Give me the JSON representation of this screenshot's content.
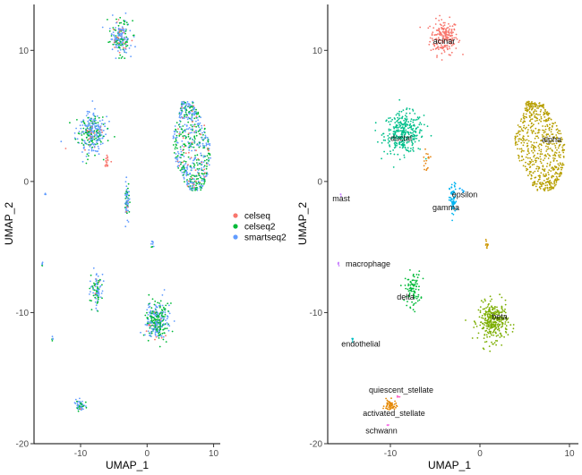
{
  "chart_data": [
    {
      "type": "scatter",
      "panel": "left",
      "title": "",
      "xlabel": "UMAP_1",
      "ylabel": "UMAP_2",
      "xlim": [
        -17,
        11
      ],
      "ylim": [
        -20,
        13.5
      ],
      "xticks": [
        -10,
        0,
        10
      ],
      "yticks": [
        -20,
        -10,
        0,
        10
      ],
      "xtick_labels": [
        "-10",
        "0",
        "10"
      ],
      "ytick_labels": [
        "-20",
        "-10",
        "0",
        "10"
      ],
      "grid": false,
      "legend": {
        "placement": "right",
        "entries": [
          {
            "name": "celseq",
            "color": "#F8766D"
          },
          {
            "name": "celseq2",
            "color": "#00BA38"
          },
          {
            "name": "smartseq2",
            "color": "#619CFF"
          }
        ]
      },
      "clusters": [
        {
          "center": [
            -4.0,
            11.0
          ],
          "spread": [
            1.4,
            1.2
          ],
          "points": 200,
          "mix": [
            0.1,
            0.35,
            0.55
          ],
          "shape": "blob"
        },
        {
          "center": [
            -8.5,
            3.7
          ],
          "spread": [
            2.0,
            1.4
          ],
          "points": 320,
          "mix": [
            0.08,
            0.32,
            0.6
          ],
          "shape": "blob"
        },
        {
          "center": [
            -6.0,
            1.6
          ],
          "spread": [
            0.4,
            0.6
          ],
          "points": 16,
          "mix": [
            1.0,
            0.0,
            0.0
          ],
          "shape": "blob"
        },
        {
          "center": [
            6.7,
            2.7
          ],
          "spread": [
            2.8,
            3.4
          ],
          "points": 600,
          "mix": [
            0.08,
            0.42,
            0.5
          ],
          "shape": "teardrop"
        },
        {
          "center": [
            -3.0,
            -1.5
          ],
          "spread": [
            0.35,
            1.2
          ],
          "points": 70,
          "mix": [
            0.05,
            0.3,
            0.65
          ],
          "shape": "blob"
        },
        {
          "center": [
            -7.5,
            -8.2
          ],
          "spread": [
            0.8,
            1.2
          ],
          "points": 90,
          "mix": [
            0.05,
            0.5,
            0.45
          ],
          "shape": "blob"
        },
        {
          "center": [
            1.5,
            -10.7
          ],
          "spread": [
            1.5,
            1.3
          ],
          "points": 320,
          "mix": [
            0.05,
            0.48,
            0.47
          ],
          "shape": "blob"
        },
        {
          "center": [
            -10.0,
            -17.1
          ],
          "spread": [
            0.6,
            0.4
          ],
          "points": 55,
          "mix": [
            0.05,
            0.35,
            0.6
          ],
          "shape": "blob"
        },
        {
          "center": [
            0.8,
            -4.8
          ],
          "spread": [
            0.2,
            0.4
          ],
          "points": 10,
          "mix": [
            0.0,
            0.3,
            0.7
          ],
          "shape": "blob"
        },
        {
          "center": [
            -15.8,
            -6.3
          ],
          "spread": [
            0.1,
            0.2
          ],
          "points": 5,
          "mix": [
            0.0,
            0.4,
            0.6
          ],
          "shape": "blob"
        },
        {
          "center": [
            -14.2,
            -12.0
          ],
          "spread": [
            0.1,
            0.2
          ],
          "points": 5,
          "mix": [
            0.0,
            0.4,
            0.6
          ],
          "shape": "blob"
        },
        {
          "center": [
            -15.3,
            -1.0
          ],
          "spread": [
            0.1,
            0.15
          ],
          "points": 3,
          "mix": [
            0.0,
            0.4,
            0.6
          ],
          "shape": "blob"
        }
      ]
    },
    {
      "type": "scatter",
      "panel": "right",
      "title": "",
      "xlabel": "UMAP_1",
      "ylabel": "UMAP_2",
      "xlim": [
        -17,
        11
      ],
      "ylim": [
        -20,
        13.5
      ],
      "xticks": [
        -10,
        0,
        10
      ],
      "yticks": [
        -20,
        -10,
        0,
        10
      ],
      "xtick_labels": [
        "-10",
        "0",
        "10"
      ],
      "ytick_labels": [
        "-20",
        "-10",
        "0",
        "10"
      ],
      "grid": false,
      "clusters": [
        {
          "label": "acinar",
          "center": [
            -4.0,
            11.0
          ],
          "spread": [
            1.4,
            1.2
          ],
          "points": 200,
          "color": "#F8766D",
          "shape": "blob",
          "label_pos": [
            -4.0,
            10.5
          ]
        },
        {
          "label": "ductal",
          "center": [
            -8.5,
            3.7
          ],
          "spread": [
            2.0,
            1.4
          ],
          "points": 320,
          "color": "#00C08B",
          "shape": "blob",
          "label_pos": [
            -8.8,
            3.1
          ]
        },
        {
          "label": "alpha",
          "center": [
            6.7,
            2.7
          ],
          "spread": [
            2.8,
            3.4
          ],
          "points": 600,
          "color": "#B79F00",
          "shape": "teardrop",
          "label_pos": [
            8.0,
            3.0
          ]
        },
        {
          "label": "epsilon",
          "center": [
            -2.0,
            -0.6
          ],
          "spread": [
            0.25,
            0.25
          ],
          "points": 6,
          "color": "#00A9FF",
          "shape": "blob",
          "label_pos": [
            -1.7,
            -1.2
          ]
        },
        {
          "label": "gamma",
          "center": [
            -3.0,
            -1.5
          ],
          "spread": [
            0.35,
            1.2
          ],
          "points": 70,
          "color": "#00B4F0",
          "shape": "blob",
          "label_pos": [
            -3.8,
            -2.2
          ]
        },
        {
          "label": "mast",
          "center": [
            -15.5,
            -1.0
          ],
          "spread": [
            0.1,
            0.15
          ],
          "points": 3,
          "color": "#C77CFF",
          "shape": "blob",
          "label_pos": [
            -15.5,
            -1.5
          ]
        },
        {
          "label": "macrophage",
          "center": [
            -15.8,
            -6.3
          ],
          "spread": [
            0.1,
            0.2
          ],
          "points": 5,
          "color": "#C77CFF",
          "shape": "blob",
          "label_pos": [
            -12.5,
            -6.5
          ]
        },
        {
          "label": "delta",
          "center": [
            -7.5,
            -8.2
          ],
          "spread": [
            0.8,
            1.2
          ],
          "points": 90,
          "color": "#00BA38",
          "shape": "blob",
          "label_pos": [
            -8.3,
            -9.0
          ]
        },
        {
          "label": "beta",
          "center": [
            1.5,
            -10.7
          ],
          "spread": [
            1.5,
            1.3
          ],
          "points": 320,
          "color": "#7CAE00",
          "shape": "blob",
          "label_pos": [
            2.2,
            -10.5
          ]
        },
        {
          "label": "endothelial",
          "center": [
            -14.2,
            -12.0
          ],
          "spread": [
            0.1,
            0.2
          ],
          "points": 5,
          "color": "#00BFC4",
          "shape": "blob",
          "label_pos": [
            -13.3,
            -12.6
          ]
        },
        {
          "label": "quiescent_stellate",
          "center": [
            -9.2,
            -16.4
          ],
          "spread": [
            0.15,
            0.1
          ],
          "points": 4,
          "color": "#FF61C3",
          "shape": "blob",
          "label_pos": [
            -8.8,
            -16.1
          ]
        },
        {
          "label": "activated_stellate",
          "center": [
            -10.0,
            -17.1
          ],
          "spread": [
            0.6,
            0.4
          ],
          "points": 55,
          "color": "#E58700",
          "shape": "blob",
          "label_pos": [
            -9.6,
            -17.9
          ]
        },
        {
          "label": "schwann",
          "center": [
            -10.3,
            -18.6
          ],
          "spread": [
            0.1,
            0.1
          ],
          "points": 3,
          "color": "#F564E3",
          "shape": "blob",
          "label_pos": [
            -11.0,
            -19.2
          ]
        },
        {
          "label": "",
          "center": [
            -6.0,
            1.6
          ],
          "spread": [
            0.4,
            0.6
          ],
          "points": 16,
          "color": "#E68613",
          "shape": "blob"
        },
        {
          "label": "",
          "center": [
            0.8,
            -4.8
          ],
          "spread": [
            0.2,
            0.4
          ],
          "points": 10,
          "color": "#CD9600",
          "shape": "blob"
        }
      ]
    }
  ]
}
